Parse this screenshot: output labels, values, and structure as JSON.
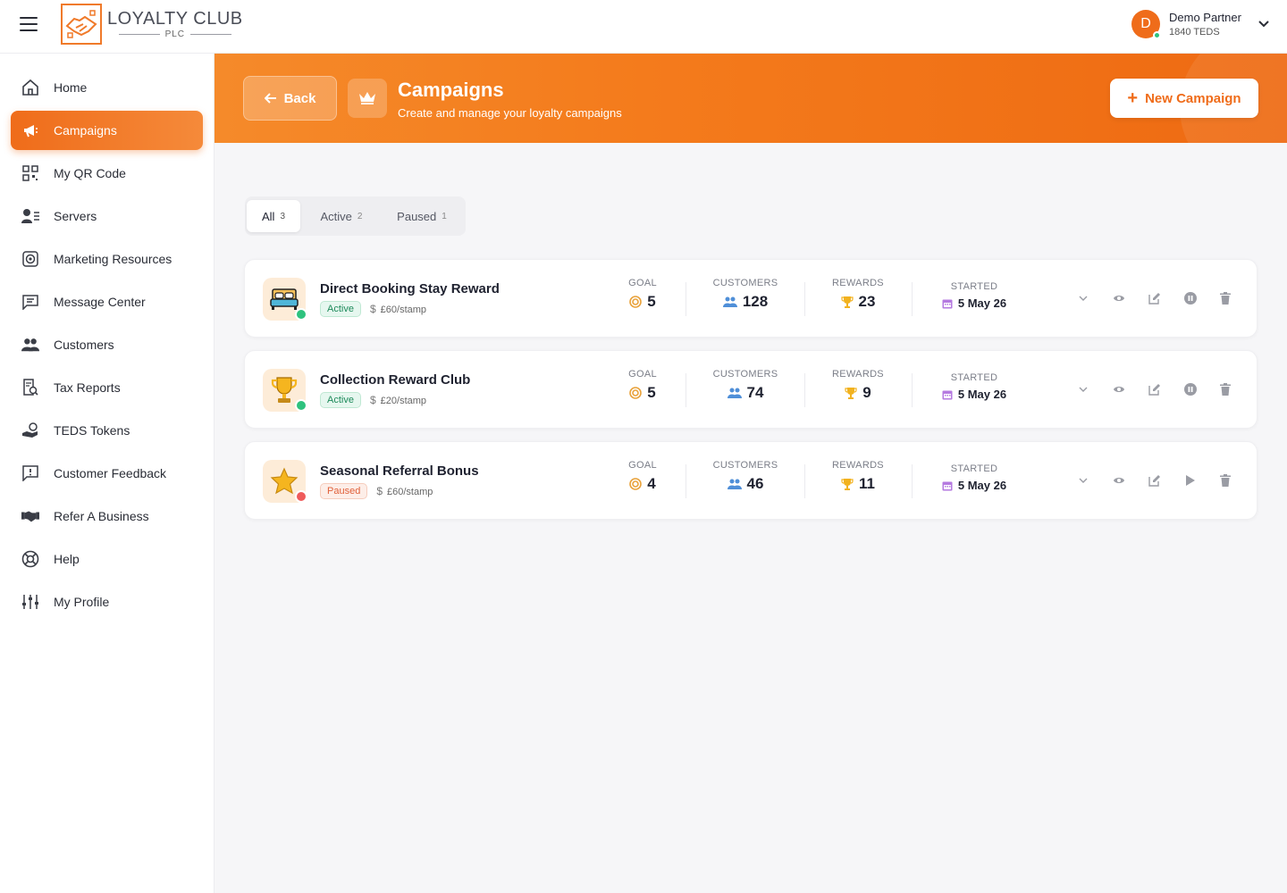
{
  "brand": {
    "title": "LOYALTY CLUB",
    "subtitle": "PLC"
  },
  "user": {
    "initial": "D",
    "name": "Demo Partner",
    "balance": "1840 TEDS"
  },
  "sidebar": {
    "items": [
      {
        "label": "Home",
        "icon": "home-icon"
      },
      {
        "label": "Campaigns",
        "icon": "megaphone-icon",
        "active": true
      },
      {
        "label": "My QR Code",
        "icon": "qr-code-icon"
      },
      {
        "label": "Servers",
        "icon": "servers-icon"
      },
      {
        "label": "Marketing Resources",
        "icon": "target-icon"
      },
      {
        "label": "Message Center",
        "icon": "message-icon"
      },
      {
        "label": "Customers",
        "icon": "customers-icon"
      },
      {
        "label": "Tax Reports",
        "icon": "tax-report-icon"
      },
      {
        "label": "TEDS Tokens",
        "icon": "tokens-icon"
      },
      {
        "label": "Customer Feedback",
        "icon": "feedback-icon"
      },
      {
        "label": "Refer A Business",
        "icon": "handshake-icon"
      },
      {
        "label": "Help",
        "icon": "lifebuoy-icon"
      },
      {
        "label": "My Profile",
        "icon": "sliders-icon"
      }
    ]
  },
  "header": {
    "back_label": "Back",
    "title": "Campaigns",
    "subtitle": "Create and manage your loyalty campaigns",
    "new_label": "New Campaign"
  },
  "tabs": [
    {
      "label": "All",
      "count": "3",
      "active": true
    },
    {
      "label": "Active",
      "count": "2"
    },
    {
      "label": "Paused",
      "count": "1"
    }
  ],
  "stat_labels": {
    "goal": "GOAL",
    "customers": "CUSTOMERS",
    "rewards": "REWARDS",
    "started": "STARTED"
  },
  "campaigns": [
    {
      "name": "Direct Booking Stay Reward",
      "status": "Active",
      "rate": "£60/stamp",
      "goal": "5",
      "customers": "128",
      "rewards": "23",
      "started": "5 May 26",
      "icon": "bed-icon"
    },
    {
      "name": "Collection Reward Club",
      "status": "Active",
      "rate": "£20/stamp",
      "goal": "5",
      "customers": "74",
      "rewards": "9",
      "started": "5 May 26",
      "icon": "trophy-icon"
    },
    {
      "name": "Seasonal Referral Bonus",
      "status": "Paused",
      "rate": "£60/stamp",
      "goal": "4",
      "customers": "46",
      "rewards": "11",
      "started": "5 May 26",
      "icon": "star-icon"
    }
  ],
  "colors": {
    "accent": "#ef6c1a",
    "active": "#2ec27e",
    "paused": "#ef5b5b"
  }
}
